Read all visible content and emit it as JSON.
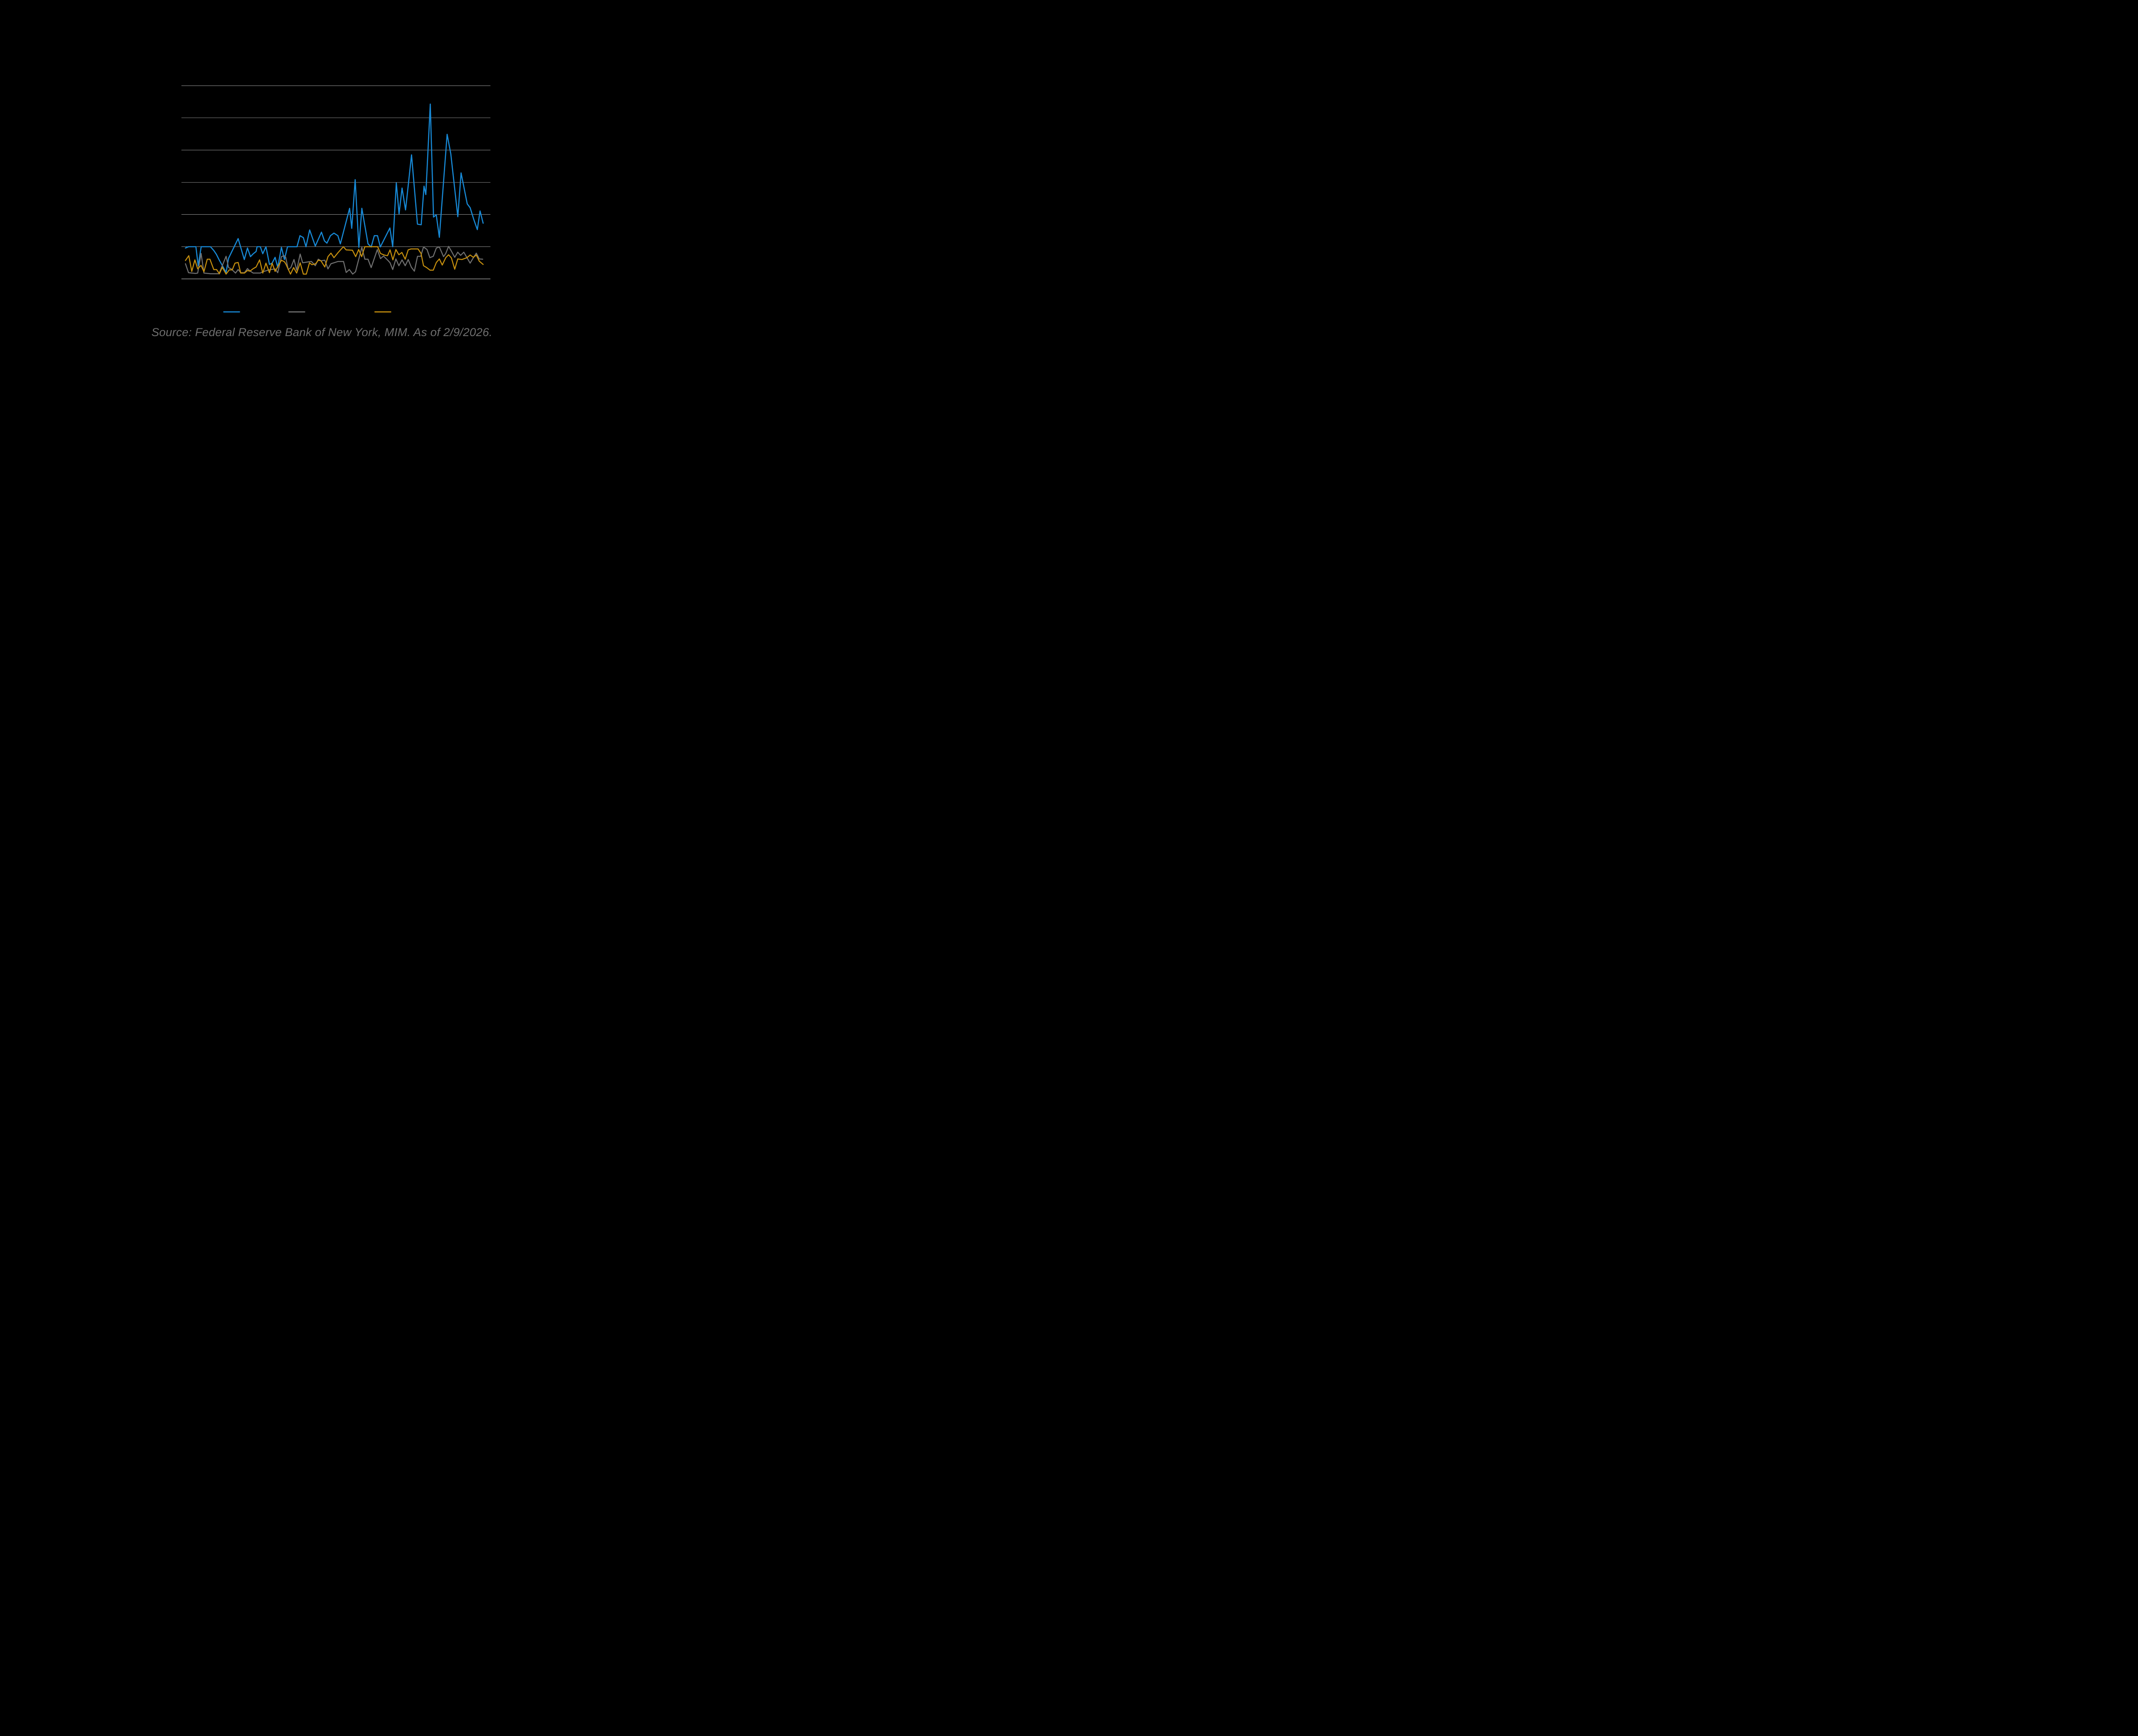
{
  "footer": {
    "source_text": "Source: Federal Reserve Bank of New York, MIM. As of 2/9/2026."
  },
  "colors": {
    "background": "#000000",
    "gridline": "#c9c9c9",
    "axis_line": "#d9d9d9",
    "source_text": "#6e6e6e"
  },
  "chart_data": {
    "type": "line",
    "title": "",
    "x_axis": {
      "labels_visible": false,
      "units": "percent of data span (tick labels not visible in image)",
      "range": [
        0,
        100
      ]
    },
    "y_axis": {
      "labels_visible": false,
      "units": "gridline intervals above bottom axis (tick labels not visible in image)",
      "range": [
        0,
        6
      ],
      "gridline_count": 7,
      "grid_on": true
    },
    "legend": {
      "position": "bottom",
      "labels_visible": false,
      "entries": [
        "blue",
        "gray",
        "orange"
      ]
    },
    "series": [
      {
        "name": "blue",
        "color": "#1789d6",
        "stroke_width": 13,
        "points": [
          [
            0,
            0.96
          ],
          [
            1.03,
            1.0
          ],
          [
            3.51,
            1.0
          ],
          [
            4.28,
            0.41
          ],
          [
            5.29,
            1.0
          ],
          [
            8.39,
            1.0
          ],
          [
            9.54,
            0.88
          ],
          [
            10.4,
            0.76
          ],
          [
            11.26,
            0.6
          ],
          [
            12.36,
            0.42
          ],
          [
            13.65,
            0.2
          ],
          [
            14.48,
            0.64
          ],
          [
            17.7,
            1.25
          ],
          [
            19.77,
            0.6
          ],
          [
            20.83,
            0.96
          ],
          [
            21.84,
            0.69
          ],
          [
            22.79,
            0.78
          ],
          [
            23.74,
            0.85
          ],
          [
            24.05,
            1.0
          ],
          [
            25.14,
            1.0
          ],
          [
            25.98,
            0.78
          ],
          [
            27.04,
            1.0
          ],
          [
            28.22,
            0.45
          ],
          [
            29.11,
            0.49
          ],
          [
            30.11,
            0.67
          ],
          [
            31.0,
            0.36
          ],
          [
            32.24,
            0.98
          ],
          [
            33.25,
            0.6
          ],
          [
            34.28,
            1.0
          ],
          [
            37.47,
            1.0
          ],
          [
            38.48,
            1.34
          ],
          [
            39.6,
            1.28
          ],
          [
            40.49,
            1.0
          ],
          [
            41.72,
            1.52
          ],
          [
            43.62,
            1.02
          ],
          [
            45.69,
            1.45
          ],
          [
            46.7,
            1.18
          ],
          [
            47.53,
            1.11
          ],
          [
            48.71,
            1.34
          ],
          [
            49.89,
            1.42
          ],
          [
            51.21,
            1.34
          ],
          [
            52.04,
            1.09
          ],
          [
            55.14,
            2.19
          ],
          [
            55.86,
            1.57
          ],
          [
            57.01,
            3.08
          ],
          [
            58.25,
            0.98
          ],
          [
            59.25,
            2.19
          ],
          [
            61.32,
            1.09
          ],
          [
            62.38,
            0.99
          ],
          [
            63.45,
            1.34
          ],
          [
            64.51,
            1.34
          ],
          [
            65.46,
            0.99
          ],
          [
            68.68,
            1.58
          ],
          [
            69.63,
            1.0
          ],
          [
            70.83,
            2.98
          ],
          [
            71.75,
            2.02
          ],
          [
            72.76,
            2.82
          ],
          [
            73.94,
            2.14
          ],
          [
            75.95,
            3.85
          ],
          [
            77.93,
            1.7
          ],
          [
            79.2,
            1.68
          ],
          [
            80.14,
            2.88
          ],
          [
            80.75,
            2.62
          ],
          [
            82.24,
            5.43
          ],
          [
            83.33,
            1.92
          ],
          [
            84.25,
            1.99
          ],
          [
            85.29,
            1.29
          ],
          [
            87.9,
            4.49
          ],
          [
            89.14,
            3.88
          ],
          [
            91.49,
            1.93
          ],
          [
            92.59,
            3.29
          ],
          [
            94.66,
            2.33
          ],
          [
            95.63,
            2.21
          ],
          [
            96.87,
            1.84
          ],
          [
            98.05,
            1.53
          ],
          [
            98.97,
            2.11
          ],
          [
            100,
            1.73
          ]
        ]
      },
      {
        "name": "gray",
        "color": "#707070",
        "stroke_width": 12,
        "points": [
          [
            0,
            0.47
          ],
          [
            1.03,
            0.19
          ],
          [
            3.42,
            0.17
          ],
          [
            4.11,
            0.18
          ],
          [
            5.26,
            0.79
          ],
          [
            6.21,
            0.18
          ],
          [
            8.39,
            0.16
          ],
          [
            11.26,
            0.16
          ],
          [
            13.65,
            0.7
          ],
          [
            14.48,
            0.35
          ],
          [
            15.37,
            0.31
          ],
          [
            16.81,
            0.18
          ],
          [
            17.7,
            0.29
          ],
          [
            18.56,
            0.19
          ],
          [
            19.83,
            0.19
          ],
          [
            20.83,
            0.32
          ],
          [
            21.64,
            0.25
          ],
          [
            22.76,
            0.18
          ],
          [
            25.14,
            0.18
          ],
          [
            25.98,
            0.22
          ],
          [
            27.04,
            0.25
          ],
          [
            27.99,
            0.28
          ],
          [
            30.11,
            0.31
          ],
          [
            31.0,
            0.19
          ],
          [
            32.24,
            0.69
          ],
          [
            33.13,
            0.72
          ],
          [
            33.68,
            0.67
          ],
          [
            34.51,
            0.29
          ],
          [
            35.4,
            0.35
          ],
          [
            36.47,
            0.6
          ],
          [
            37.36,
            0.27
          ],
          [
            38.53,
            0.77
          ],
          [
            39.37,
            0.5
          ],
          [
            41.49,
            0.53
          ],
          [
            42.33,
            0.54
          ],
          [
            43.62,
            0.41
          ],
          [
            44.63,
            0.61
          ],
          [
            45.52,
            0.56
          ],
          [
            46.81,
            0.58
          ],
          [
            47.87,
            0.31
          ],
          [
            48.88,
            0.47
          ],
          [
            51.21,
            0.54
          ],
          [
            53.1,
            0.54
          ],
          [
            54.0,
            0.2
          ],
          [
            55.06,
            0.29
          ],
          [
            56.18,
            0.15
          ],
          [
            57.13,
            0.22
          ],
          [
            59.25,
            0.98
          ],
          [
            60.26,
            0.61
          ],
          [
            61.32,
            0.61
          ],
          [
            62.38,
            0.35
          ],
          [
            64.45,
            0.91
          ],
          [
            65.52,
            0.63
          ],
          [
            66.52,
            0.71
          ],
          [
            67.96,
            0.58
          ],
          [
            68.74,
            0.5
          ],
          [
            69.63,
            0.29
          ],
          [
            70.69,
            0.62
          ],
          [
            71.7,
            0.41
          ],
          [
            72.76,
            0.59
          ],
          [
            73.82,
            0.41
          ],
          [
            74.83,
            0.6
          ],
          [
            75.89,
            0.36
          ],
          [
            76.9,
            0.24
          ],
          [
            77.96,
            0.7
          ],
          [
            79.02,
            0.7
          ],
          [
            79.97,
            0.99
          ],
          [
            81.15,
            0.91
          ],
          [
            82.1,
            0.66
          ],
          [
            83.25,
            0.7
          ],
          [
            84.28,
            0.96
          ],
          [
            85.29,
            0.99
          ],
          [
            86.7,
            0.69
          ],
          [
            87.44,
            0.79
          ],
          [
            88.39,
            1.01
          ],
          [
            89.34,
            0.86
          ],
          [
            90.46,
            0.67
          ],
          [
            91.47,
            0.83
          ],
          [
            92.44,
            0.73
          ],
          [
            93.51,
            0.83
          ],
          [
            94.57,
            0.66
          ],
          [
            95.63,
            0.49
          ],
          [
            96.72,
            0.66
          ],
          [
            97.7,
            0.8
          ],
          [
            98.71,
            0.62
          ],
          [
            99.86,
            0.61
          ]
        ]
      },
      {
        "name": "orange",
        "color": "#c7900e",
        "stroke_width": 12,
        "points": [
          [
            0,
            0.57
          ],
          [
            1.12,
            0.72
          ],
          [
            2.13,
            0.23
          ],
          [
            3.16,
            0.59
          ],
          [
            4.11,
            0.31
          ],
          [
            5.23,
            0.42
          ],
          [
            6.21,
            0.22
          ],
          [
            7.33,
            0.61
          ],
          [
            8.22,
            0.61
          ],
          [
            9.51,
            0.29
          ],
          [
            10.46,
            0.29
          ],
          [
            11.41,
            0.16
          ],
          [
            12.36,
            0.36
          ],
          [
            13.65,
            0.15
          ],
          [
            14.71,
            0.28
          ],
          [
            15.72,
            0.28
          ],
          [
            16.64,
            0.49
          ],
          [
            17.7,
            0.51
          ],
          [
            18.56,
            0.18
          ],
          [
            19.83,
            0.18
          ],
          [
            20.83,
            0.26
          ],
          [
            21.64,
            0.24
          ],
          [
            22.79,
            0.32
          ],
          [
            23.74,
            0.37
          ],
          [
            24.91,
            0.59
          ],
          [
            25.98,
            0.18
          ],
          [
            27.04,
            0.49
          ],
          [
            28.22,
            0.19
          ],
          [
            29.11,
            0.49
          ],
          [
            30.11,
            0.23
          ],
          [
            32.24,
            0.58
          ],
          [
            33.25,
            0.53
          ],
          [
            33.68,
            0.47
          ],
          [
            35.29,
            0.15
          ],
          [
            36.35,
            0.35
          ],
          [
            37.36,
            0.18
          ],
          [
            38.53,
            0.5
          ],
          [
            39.6,
            0.15
          ],
          [
            40.6,
            0.15
          ],
          [
            41.67,
            0.5
          ],
          [
            42.5,
            0.44
          ],
          [
            43.74,
            0.47
          ],
          [
            44.63,
            0.58
          ],
          [
            45.52,
            0.56
          ],
          [
            46.81,
            0.37
          ],
          [
            47.87,
            0.69
          ],
          [
            48.88,
            0.8
          ],
          [
            49.89,
            0.66
          ],
          [
            51.21,
            0.81
          ],
          [
            53.05,
            1.0
          ],
          [
            54.0,
            0.9
          ],
          [
            56.09,
            0.89
          ],
          [
            57.18,
            0.69
          ],
          [
            58.19,
            0.91
          ],
          [
            59.2,
            0.69
          ],
          [
            60.26,
            1.0
          ],
          [
            64.57,
            1.0
          ],
          [
            65.52,
            0.79
          ],
          [
            66.75,
            0.74
          ],
          [
            67.87,
            0.72
          ],
          [
            68.74,
            0.9
          ],
          [
            69.69,
            0.59
          ],
          [
            70.69,
            0.91
          ],
          [
            71.7,
            0.75
          ],
          [
            72.7,
            0.82
          ],
          [
            73.82,
            0.61
          ],
          [
            74.83,
            0.9
          ],
          [
            75.78,
            0.93
          ],
          [
            78.13,
            0.93
          ],
          [
            79.14,
            0.79
          ],
          [
            79.97,
            0.41
          ],
          [
            81.03,
            0.35
          ],
          [
            82.15,
            0.27
          ],
          [
            83.25,
            0.27
          ],
          [
            84.28,
            0.51
          ],
          [
            85.29,
            0.62
          ],
          [
            86.26,
            0.43
          ],
          [
            87.44,
            0.66
          ],
          [
            88.39,
            0.75
          ],
          [
            89.34,
            0.65
          ],
          [
            90.46,
            0.3
          ],
          [
            91.47,
            0.62
          ],
          [
            92.85,
            0.6
          ],
          [
            94.57,
            0.66
          ],
          [
            95.63,
            0.74
          ],
          [
            96.72,
            0.67
          ],
          [
            97.7,
            0.74
          ],
          [
            98.71,
            0.55
          ],
          [
            100,
            0.45
          ]
        ]
      }
    ]
  }
}
